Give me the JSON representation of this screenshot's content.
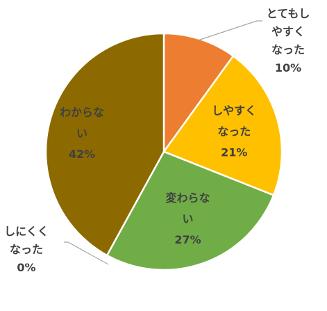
{
  "chart_data": {
    "type": "pie",
    "start_angle": "12 o'clock",
    "direction": "clockwise",
    "slices": [
      {
        "label_lines": [
          "とてもし",
          "やすく",
          "なった"
        ],
        "value": 10,
        "value_text": "10%",
        "color": "#ED7D31",
        "label_position": "outside-top-right"
      },
      {
        "label_lines": [
          "しやすく",
          "なった"
        ],
        "value": 21,
        "value_text": "21%",
        "color": "#FFC000",
        "label_position": "inside"
      },
      {
        "label_lines": [
          "変わらな",
          "い"
        ],
        "value": 27,
        "value_text": "27%",
        "color": "#70AD47",
        "label_position": "inside"
      },
      {
        "label_lines": [
          "しにくく",
          "なった"
        ],
        "value": 0,
        "value_text": "0%",
        "color": "#4472C4",
        "label_position": "outside-left"
      },
      {
        "label_lines": [
          "わからな",
          "い"
        ],
        "value": 42,
        "value_text": "42%",
        "color": "#8C6A00",
        "label_position": "inside"
      }
    ]
  }
}
